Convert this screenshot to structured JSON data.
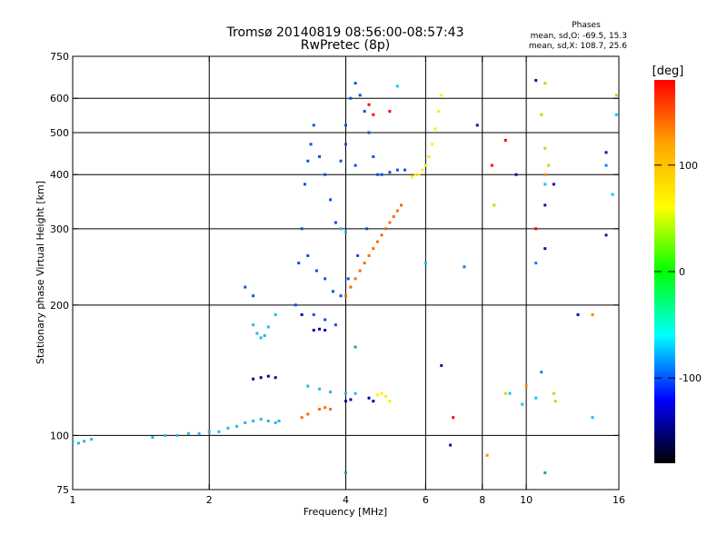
{
  "chart_data": {
    "type": "scatter",
    "title": "Tromsø 20140819 08:56:00-08:57:43",
    "subtitle": "RwPretec (8p)",
    "xlabel": "Frequency [MHz]",
    "ylabel": "Stationary phase Virtual Height [km]",
    "x_scale": "log",
    "y_scale": "log",
    "xlim": [
      1,
      16
    ],
    "ylim": [
      75,
      750
    ],
    "x_ticks": [
      1,
      2,
      4,
      6,
      8,
      10,
      16
    ],
    "y_ticks": [
      75,
      100,
      200,
      300,
      400,
      500,
      600,
      750
    ],
    "x_grid": [
      2,
      4,
      6,
      8,
      10
    ],
    "y_grid": [
      100,
      200,
      300,
      400,
      500,
      600
    ],
    "grid": true,
    "stats": {
      "title": "Phases",
      "line1": "mean, sd,O: -69.5, 15.3",
      "line2": "mean, sd,X: 108.7, 25.6"
    },
    "colorbar": {
      "label": "[deg]",
      "range": [
        -180,
        180
      ],
      "ticks": [
        100,
        0,
        -100
      ],
      "palette": [
        "#ff0000",
        "#ffa500",
        "#ffff00",
        "#00ff00",
        "#00ffff",
        "#0000ff",
        "#000000"
      ],
      "placement": "right"
    },
    "series": [
      {
        "color": "#1fb8e8",
        "points": [
          [
            1.0,
            97
          ],
          [
            1.03,
            96
          ],
          [
            1.06,
            97
          ],
          [
            1.1,
            98
          ],
          [
            1.5,
            99
          ],
          [
            1.6,
            100
          ],
          [
            1.7,
            100
          ],
          [
            1.8,
            101
          ],
          [
            1.9,
            101
          ],
          [
            2.0,
            102
          ],
          [
            2.1,
            102
          ],
          [
            2.2,
            104
          ],
          [
            2.3,
            105
          ],
          [
            2.4,
            107
          ],
          [
            2.5,
            108
          ],
          [
            2.6,
            109
          ],
          [
            2.7,
            108
          ],
          [
            2.8,
            107
          ],
          [
            2.85,
            108
          ],
          [
            2.5,
            180
          ],
          [
            2.55,
            172
          ],
          [
            2.6,
            168
          ],
          [
            2.65,
            170
          ],
          [
            2.7,
            178
          ],
          [
            2.8,
            190
          ],
          [
            3.3,
            130
          ],
          [
            3.5,
            128
          ],
          [
            3.7,
            126
          ],
          [
            4.0,
            125
          ],
          [
            4.2,
            125
          ],
          [
            3.9,
            300
          ],
          [
            4.0,
            295
          ]
        ]
      },
      {
        "color": "#0a50e6",
        "points": [
          [
            3.1,
            200
          ],
          [
            3.15,
            250
          ],
          [
            3.2,
            300
          ],
          [
            3.25,
            380
          ],
          [
            3.3,
            430
          ],
          [
            3.35,
            470
          ],
          [
            3.4,
            520
          ],
          [
            3.5,
            440
          ],
          [
            3.6,
            400
          ],
          [
            3.7,
            350
          ],
          [
            3.8,
            310
          ],
          [
            3.9,
            430
          ],
          [
            4.0,
            520
          ],
          [
            4.1,
            600
          ],
          [
            4.2,
            650
          ],
          [
            4.3,
            610
          ],
          [
            4.4,
            560
          ],
          [
            4.5,
            500
          ],
          [
            4.6,
            440
          ],
          [
            4.7,
            400
          ],
          [
            4.8,
            400
          ],
          [
            5.0,
            405
          ],
          [
            5.2,
            410
          ],
          [
            5.4,
            410
          ],
          [
            3.3,
            260
          ],
          [
            3.45,
            240
          ],
          [
            3.6,
            230
          ],
          [
            3.75,
            215
          ],
          [
            3.9,
            210
          ],
          [
            4.05,
            230
          ],
          [
            4.25,
            260
          ],
          [
            4.45,
            300
          ],
          [
            2.4,
            220
          ],
          [
            2.5,
            210
          ],
          [
            3.4,
            190
          ],
          [
            3.6,
            185
          ],
          [
            3.8,
            180
          ],
          [
            4.0,
            470
          ],
          [
            4.2,
            420
          ]
        ]
      },
      {
        "color": "#0000aa",
        "points": [
          [
            2.5,
            135
          ],
          [
            2.6,
            136
          ],
          [
            2.7,
            137
          ],
          [
            2.8,
            136
          ],
          [
            3.4,
            175
          ],
          [
            3.5,
            176
          ],
          [
            3.6,
            175
          ],
          [
            4.0,
            120
          ],
          [
            4.1,
            121
          ],
          [
            4.5,
            122
          ],
          [
            4.6,
            120
          ],
          [
            3.2,
            190
          ]
        ]
      },
      {
        "color": "#ff6600",
        "points": [
          [
            4.0,
            210
          ],
          [
            4.1,
            220
          ],
          [
            4.2,
            230
          ],
          [
            4.3,
            240
          ],
          [
            4.4,
            250
          ],
          [
            4.5,
            260
          ],
          [
            4.6,
            270
          ],
          [
            4.7,
            280
          ],
          [
            4.8,
            290
          ],
          [
            4.9,
            300
          ],
          [
            5.0,
            310
          ],
          [
            5.1,
            320
          ],
          [
            5.2,
            330
          ],
          [
            5.3,
            340
          ],
          [
            3.2,
            110
          ],
          [
            3.3,
            112
          ],
          [
            3.5,
            115
          ],
          [
            3.6,
            116
          ],
          [
            3.7,
            115
          ]
        ]
      },
      {
        "color": "#ffee00",
        "points": [
          [
            5.6,
            395
          ],
          [
            5.7,
            400
          ],
          [
            5.8,
            400
          ],
          [
            5.9,
            410
          ],
          [
            6.0,
            420
          ],
          [
            6.1,
            440
          ],
          [
            6.2,
            470
          ],
          [
            6.3,
            510
          ],
          [
            6.4,
            560
          ],
          [
            6.5,
            610
          ],
          [
            4.7,
            124
          ],
          [
            4.8,
            125
          ],
          [
            4.9,
            123
          ],
          [
            5.0,
            120
          ]
        ]
      },
      {
        "color": "#ff0000",
        "points": [
          [
            4.5,
            580
          ],
          [
            4.6,
            550
          ],
          [
            5.0,
            560
          ],
          [
            6.9,
            110
          ],
          [
            8.4,
            420
          ],
          [
            9.0,
            480
          ],
          [
            10.5,
            300
          ]
        ]
      },
      {
        "color": "#00bb55",
        "points": [
          [
            4.0,
            82
          ],
          [
            4.2,
            160
          ],
          [
            11.0,
            82
          ]
        ]
      },
      {
        "color": "#00c8ff",
        "points": [
          [
            5.2,
            640
          ],
          [
            6.0,
            250
          ],
          [
            9.2,
            125
          ],
          [
            9.8,
            118
          ],
          [
            10.5,
            122
          ],
          [
            11.0,
            380
          ],
          [
            14.0,
            110
          ],
          [
            15.5,
            360
          ],
          [
            15.8,
            550
          ]
        ]
      },
      {
        "color": "#ddcc00",
        "points": [
          [
            8.5,
            340
          ],
          [
            9.0,
            125
          ],
          [
            10.8,
            550
          ],
          [
            11.0,
            460
          ],
          [
            11.0,
            650
          ],
          [
            11.2,
            420
          ],
          [
            11.5,
            125
          ],
          [
            11.6,
            120
          ],
          [
            15.8,
            610
          ]
        ]
      },
      {
        "color": "#1010a0",
        "points": [
          [
            6.5,
            145
          ],
          [
            7.8,
            520
          ],
          [
            9.5,
            400
          ],
          [
            10.5,
            660
          ],
          [
            11.0,
            340
          ],
          [
            11.5,
            380
          ],
          [
            11.0,
            270
          ],
          [
            13.0,
            190
          ],
          [
            15.0,
            450
          ],
          [
            15.0,
            290
          ],
          [
            6.8,
            95
          ]
        ]
      },
      {
        "color": "#0080ff",
        "points": [
          [
            7.3,
            245
          ],
          [
            10.5,
            250
          ],
          [
            10.8,
            140
          ],
          [
            15.0,
            420
          ]
        ]
      },
      {
        "color": "#ff8800",
        "points": [
          [
            8.2,
            90
          ],
          [
            10.0,
            130
          ],
          [
            11.0,
            400
          ],
          [
            14.0,
            190
          ]
        ]
      }
    ]
  }
}
